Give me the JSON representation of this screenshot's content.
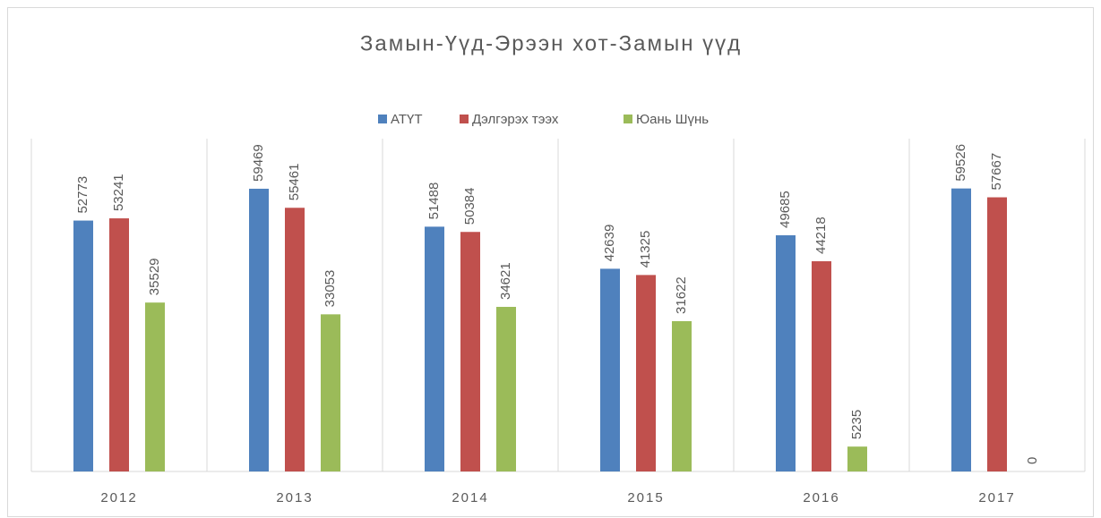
{
  "chart_data": {
    "type": "bar",
    "title": "Замын-Үүд-Эрээн хот-Замын үүд",
    "categories": [
      "2012",
      "2013",
      "2014",
      "2015",
      "2016",
      "2017"
    ],
    "series": [
      {
        "name": "АТҮТ",
        "color": "#4f81bd",
        "values": [
          52773,
          59469,
          51488,
          42639,
          49685,
          59526
        ]
      },
      {
        "name": "Дэлгэрэх тээх",
        "color": "#c0504d",
        "values": [
          53241,
          55461,
          50384,
          41325,
          44218,
          57667
        ]
      },
      {
        "name": "Юань Шүнь",
        "color": "#9bbb59",
        "values": [
          35529,
          33053,
          34621,
          31622,
          5235,
          0
        ]
      }
    ],
    "ylim": [
      0,
      70000
    ],
    "legend": "top"
  }
}
